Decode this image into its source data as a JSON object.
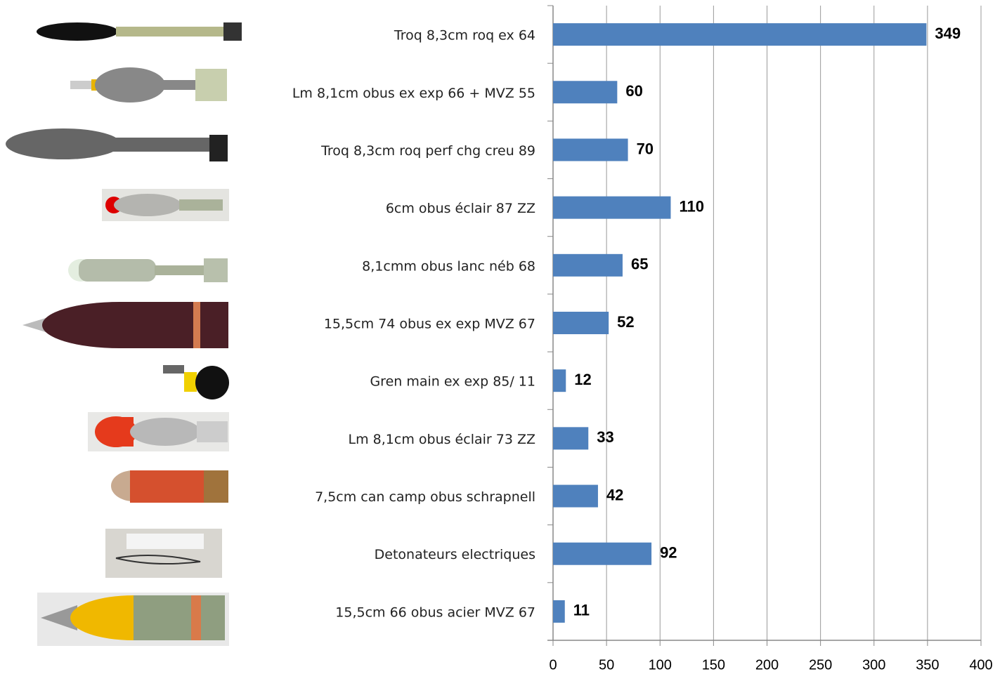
{
  "chart_data": {
    "type": "bar",
    "orientation": "horizontal",
    "categories": [
      "Troq 8,3cm roq ex 64",
      "Lm 8,1cm obus ex exp 66 + MVZ 55",
      "Troq 8,3cm roq perf chg creu 89",
      "6cm obus éclair 87 ZZ",
      "8,1cmm obus lanc néb 68",
      "15,5cm 74 obus ex exp MVZ 67",
      "Gren main ex exp 85/ 11",
      "Lm 8,1cm obus éclair 73 ZZ",
      "7,5cm can camp obus schrapnell",
      "Detonateurs electriques",
      "15,5cm 66 obus acier MVZ 67"
    ],
    "values": [
      349,
      60,
      70,
      110,
      65,
      52,
      12,
      33,
      42,
      92,
      11
    ],
    "color": "#4f81bd",
    "xlim": [
      0,
      400
    ],
    "xticks": [
      0,
      50,
      100,
      150,
      200,
      250,
      300,
      350,
      400
    ],
    "grid": true
  }
}
